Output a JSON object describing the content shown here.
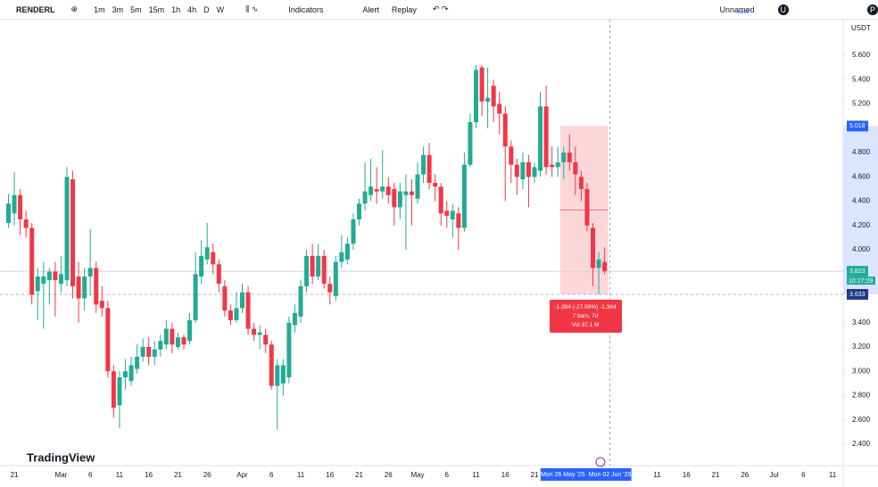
{
  "toolbar": {
    "symbol": "RENDERL",
    "intervals": [
      "1m",
      "3m",
      "5m",
      "15m",
      "1h",
      "4h",
      "D",
      "W"
    ],
    "indicators": "Indicators",
    "alert": "Alert",
    "replay": "Replay",
    "layout_name": "Unnamed",
    "save": "Save",
    "user": "U",
    "profile": "P"
  },
  "brand": "TradingView",
  "chart_data": {
    "type": "candlestick",
    "currency": "USDT",
    "up_color": "#22ab94",
    "down_color": "#f23645",
    "categories": [
      null,
      "21",
      null,
      null,
      null,
      null,
      null,
      null,
      null,
      "Mar",
      null,
      null,
      null,
      null,
      "6",
      null,
      null,
      null,
      null,
      "11",
      null,
      null,
      null,
      null,
      "16",
      null,
      null,
      null,
      null,
      "21",
      null,
      null,
      null,
      null,
      "26",
      null,
      null,
      null,
      null,
      null,
      "Apr",
      null,
      null,
      null,
      null,
      "6",
      null,
      null,
      null,
      null,
      "11",
      null,
      null,
      null,
      null,
      "16",
      null,
      null,
      null,
      null,
      "21",
      null,
      null,
      null,
      null,
      "26",
      null,
      null,
      null,
      null,
      "May",
      null,
      null,
      null,
      null,
      "6",
      null,
      null,
      null,
      null,
      "11",
      null,
      null,
      null,
      null,
      "16",
      null,
      null,
      null,
      null,
      "21",
      null,
      null,
      null,
      null,
      null,
      null,
      null,
      null,
      null,
      null,
      null,
      null,
      null,
      null,
      null,
      null,
      null,
      null,
      null,
      null,
      "11",
      null,
      null,
      null,
      null,
      "16",
      null,
      null,
      null,
      null,
      "21",
      null,
      null,
      null,
      null,
      "26",
      null,
      null,
      null,
      null,
      "Jul",
      null,
      null,
      null,
      null,
      "6",
      null,
      null,
      null,
      null,
      "11",
      null
    ],
    "open": [
      4.22,
      4.3,
      4.45,
      4.25,
      4.18,
      3.66,
      3.72,
      3.75,
      3.82,
      3.72,
      3.75,
      4.58,
      3.78,
      3.6,
      3.78,
      3.85,
      3.58,
      3.52,
      3.0,
      2.72,
      2.95,
      2.92,
      3.02,
      3.12,
      3.2,
      3.12,
      3.18,
      3.22,
      3.35,
      3.2,
      3.28,
      3.25,
      3.42,
      3.78,
      3.92,
      3.98,
      3.88,
      3.7,
      3.5,
      3.42,
      3.52,
      3.65,
      3.35,
      3.3,
      3.3,
      3.22,
      2.88,
      2.9,
      2.95,
      3.38,
      3.45,
      3.7,
      3.95,
      3.78,
      3.95,
      3.72,
      3.62,
      3.9,
      3.92,
      4.05,
      4.25,
      4.38,
      4.45,
      4.5,
      4.48,
      4.52,
      4.5,
      4.35,
      4.45,
      4.48,
      4.42,
      4.62,
      4.78,
      4.55,
      4.52,
      4.32,
      4.25,
      4.3,
      4.18,
      4.7,
      5.05,
      5.5,
      5.22,
      5.35,
      5.2,
      5.12,
      4.85,
      4.7,
      4.58,
      4.72,
      4.6,
      4.65,
      5.18,
      4.7,
      4.68,
      4.72,
      4.8,
      4.72,
      4.6,
      4.5,
      4.18,
      3.85,
      3.9,
      null,
      null,
      null,
      null,
      null,
      null,
      null,
      null,
      null,
      null,
      null,
      null,
      null,
      null,
      null,
      null,
      null,
      null,
      null,
      null,
      null,
      null,
      null,
      null,
      null,
      null,
      null,
      null,
      null,
      null,
      null,
      null,
      null,
      null,
      null,
      null,
      null,
      null,
      null,
      null
    ],
    "high": [
      4.46,
      4.64,
      4.5,
      4.32,
      4.22,
      3.85,
      3.9,
      3.85,
      3.9,
      3.95,
      4.68,
      4.65,
      3.9,
      3.85,
      4.17,
      3.9,
      3.7,
      3.58,
      3.05,
      3.0,
      3.1,
      3.12,
      3.22,
      3.27,
      3.28,
      3.25,
      3.3,
      3.42,
      3.4,
      3.32,
      3.3,
      3.48,
      3.98,
      4.08,
      4.22,
      4.05,
      3.92,
      3.75,
      3.55,
      3.65,
      3.72,
      3.7,
      3.4,
      3.38,
      3.35,
      3.25,
      3.1,
      3.1,
      3.45,
      3.55,
      3.75,
      4.0,
      4.05,
      4.05,
      4.0,
      3.78,
      3.95,
      4.12,
      4.1,
      4.3,
      4.42,
      4.72,
      4.75,
      4.68,
      4.82,
      4.6,
      4.55,
      4.55,
      4.62,
      4.58,
      4.72,
      4.85,
      4.88,
      4.62,
      4.55,
      4.4,
      4.38,
      4.35,
      4.8,
      5.12,
      5.52,
      5.52,
      5.5,
      5.4,
      5.3,
      5.18,
      4.9,
      4.75,
      4.8,
      4.78,
      4.72,
      5.3,
      5.35,
      4.85,
      4.85,
      4.85,
      4.95,
      4.85,
      4.65,
      4.55,
      4.22,
      3.98,
      4.02,
      null,
      null,
      null,
      null,
      null,
      null,
      null,
      null,
      null,
      null,
      null,
      null,
      null,
      null,
      null,
      null,
      null,
      null,
      null,
      null,
      null,
      null,
      null,
      null,
      null,
      null,
      null,
      null,
      null,
      null,
      null,
      null,
      null,
      null,
      null,
      null,
      null,
      null,
      null,
      null
    ],
    "low": [
      4.18,
      4.2,
      4.12,
      4.1,
      3.55,
      3.42,
      3.35,
      3.55,
      3.45,
      3.65,
      3.7,
      3.6,
      3.4,
      3.5,
      3.62,
      3.48,
      3.45,
      2.95,
      2.62,
      2.53,
      2.85,
      2.88,
      2.98,
      3.08,
      3.05,
      3.05,
      3.12,
      3.18,
      3.15,
      3.18,
      3.18,
      3.22,
      3.4,
      3.72,
      3.88,
      3.8,
      3.65,
      3.45,
      3.38,
      3.4,
      3.48,
      3.3,
      3.25,
      3.18,
      3.15,
      2.85,
      2.52,
      2.8,
      2.9,
      3.32,
      3.4,
      3.65,
      3.72,
      3.75,
      3.68,
      3.55,
      3.58,
      3.85,
      3.88,
      4.0,
      4.2,
      4.32,
      4.4,
      4.38,
      4.42,
      4.38,
      4.2,
      4.25,
      4.0,
      4.2,
      4.38,
      4.55,
      4.5,
      4.4,
      4.2,
      4.18,
      4.1,
      4.0,
      4.15,
      4.68,
      5.0,
      5.1,
      5.0,
      5.05,
      4.95,
      4.4,
      4.55,
      4.45,
      4.5,
      4.35,
      4.55,
      4.6,
      4.62,
      4.6,
      4.6,
      4.58,
      4.65,
      4.45,
      4.4,
      4.15,
      3.7,
      3.63,
      3.8,
      null,
      null,
      null,
      null,
      null,
      null,
      null,
      null,
      null,
      null,
      null,
      null,
      null,
      null,
      null,
      null,
      null,
      null,
      null,
      null,
      null,
      null,
      null,
      null,
      null,
      null,
      null,
      null,
      null,
      null,
      null,
      null,
      null,
      null,
      null,
      null,
      null,
      null,
      null,
      null
    ],
    "close": [
      4.38,
      4.45,
      4.25,
      4.18,
      3.63,
      3.78,
      3.78,
      3.82,
      3.75,
      3.8,
      4.6,
      3.7,
      3.6,
      3.78,
      3.85,
      3.55,
      3.52,
      3.0,
      2.7,
      2.95,
      3.0,
      3.05,
      3.12,
      3.2,
      3.12,
      3.18,
      3.25,
      3.35,
      3.22,
      3.28,
      3.22,
      3.42,
      3.8,
      3.95,
      4.02,
      3.88,
      3.72,
      3.5,
      3.42,
      3.52,
      3.65,
      3.35,
      3.3,
      3.32,
      3.22,
      2.88,
      3.05,
      3.05,
      3.4,
      3.48,
      3.7,
      3.95,
      3.78,
      3.95,
      3.72,
      3.65,
      3.9,
      3.98,
      4.05,
      4.25,
      4.38,
      4.48,
      4.52,
      4.48,
      4.52,
      4.45,
      4.35,
      4.48,
      4.48,
      4.45,
      4.62,
      4.78,
      4.55,
      4.52,
      4.3,
      4.28,
      4.32,
      4.18,
      4.7,
      5.05,
      5.48,
      5.22,
      5.25,
      5.18,
      5.12,
      4.85,
      4.7,
      4.6,
      4.72,
      4.6,
      4.68,
      5.18,
      4.68,
      4.68,
      4.72,
      4.8,
      4.72,
      4.62,
      4.5,
      4.2,
      3.85,
      3.92,
      3.823,
      null,
      null,
      null,
      null,
      null,
      null,
      null,
      null,
      null,
      null,
      null,
      null,
      null,
      null,
      null,
      null,
      null,
      null,
      null,
      null,
      null,
      null,
      null,
      null,
      null,
      null,
      null,
      null,
      null,
      null,
      null,
      null,
      null,
      null,
      null,
      null,
      null,
      null,
      null,
      null
    ],
    "ylim": [
      2.224,
      5.894
    ],
    "yticks": [
      {
        "value": 2.4,
        "label": "2.400"
      },
      {
        "value": 2.6,
        "label": "2.600"
      },
      {
        "value": 2.8,
        "label": "2.800"
      },
      {
        "value": 3.0,
        "label": "3.000"
      },
      {
        "value": 3.2,
        "label": "3.200"
      },
      {
        "value": 3.4,
        "label": "3.400"
      },
      {
        "value": 4.0,
        "label": "4.000"
      },
      {
        "value": 4.2,
        "label": "4.200"
      },
      {
        "value": 4.4,
        "label": "4.400"
      },
      {
        "value": 4.6,
        "label": "4.600"
      },
      {
        "value": 4.8,
        "label": "4.800"
      },
      {
        "value": 5.2,
        "label": "5.200"
      },
      {
        "value": 5.4,
        "label": "5.400"
      },
      {
        "value": 5.6,
        "label": "5.600"
      }
    ],
    "price_labels": [
      5.018,
      3.823,
      3.633
    ],
    "countdown": "10:27:29",
    "crosshair_dates": [
      "Mon 26 May '25",
      "Mon 02 Jun '25"
    ],
    "measure": {
      "change": "-1.384 (-27.59%) -1,384",
      "bars": "7 bars, 7d",
      "volume": "Vol 37.1 M"
    }
  }
}
